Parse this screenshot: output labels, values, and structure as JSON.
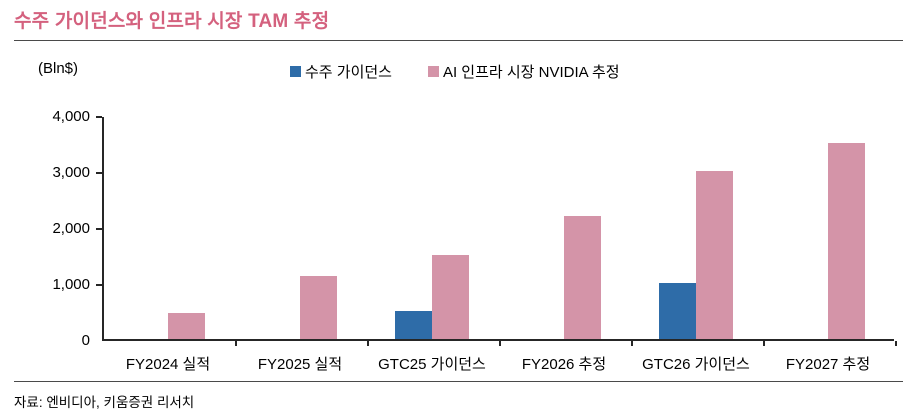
{
  "title": "수주 가이던스와 인프라 시장 TAM 추정",
  "unit_label": "(Bln$)",
  "source": "자료: 엔비디아, 키움증권 리서치",
  "colors": {
    "title": "#d4617e",
    "axis": "#262626",
    "series_blue": "#2e6ca8",
    "series_pink": "#d494a8"
  },
  "chart_data": {
    "type": "bar",
    "title": "수주 가이던스와 인프라 시장 TAM 추정",
    "ylabel": "(Bln$)",
    "categories": [
      "FY2024 실적",
      "FY2025 실적",
      "GTC25 가이던스",
      "FY2026 추정",
      "GTC26 가이던스",
      "FY2027 추정"
    ],
    "series": [
      {
        "name": "수주 가이던스",
        "color": "#2e6ca8",
        "values": [
          null,
          null,
          500,
          null,
          1000,
          null
        ]
      },
      {
        "name": "AI 인프라 시장 NVIDIA 추정",
        "color": "#d494a8",
        "values": [
          470,
          1130,
          1500,
          2200,
          3000,
          3500
        ]
      }
    ],
    "ylim": [
      0,
      4000
    ],
    "yticks": [
      0,
      1000,
      2000,
      3000,
      4000
    ],
    "ytick_labels": [
      "0",
      "1,000",
      "2,000",
      "3,000",
      "4,000"
    ],
    "grid": false,
    "legend_position": "top-center"
  }
}
